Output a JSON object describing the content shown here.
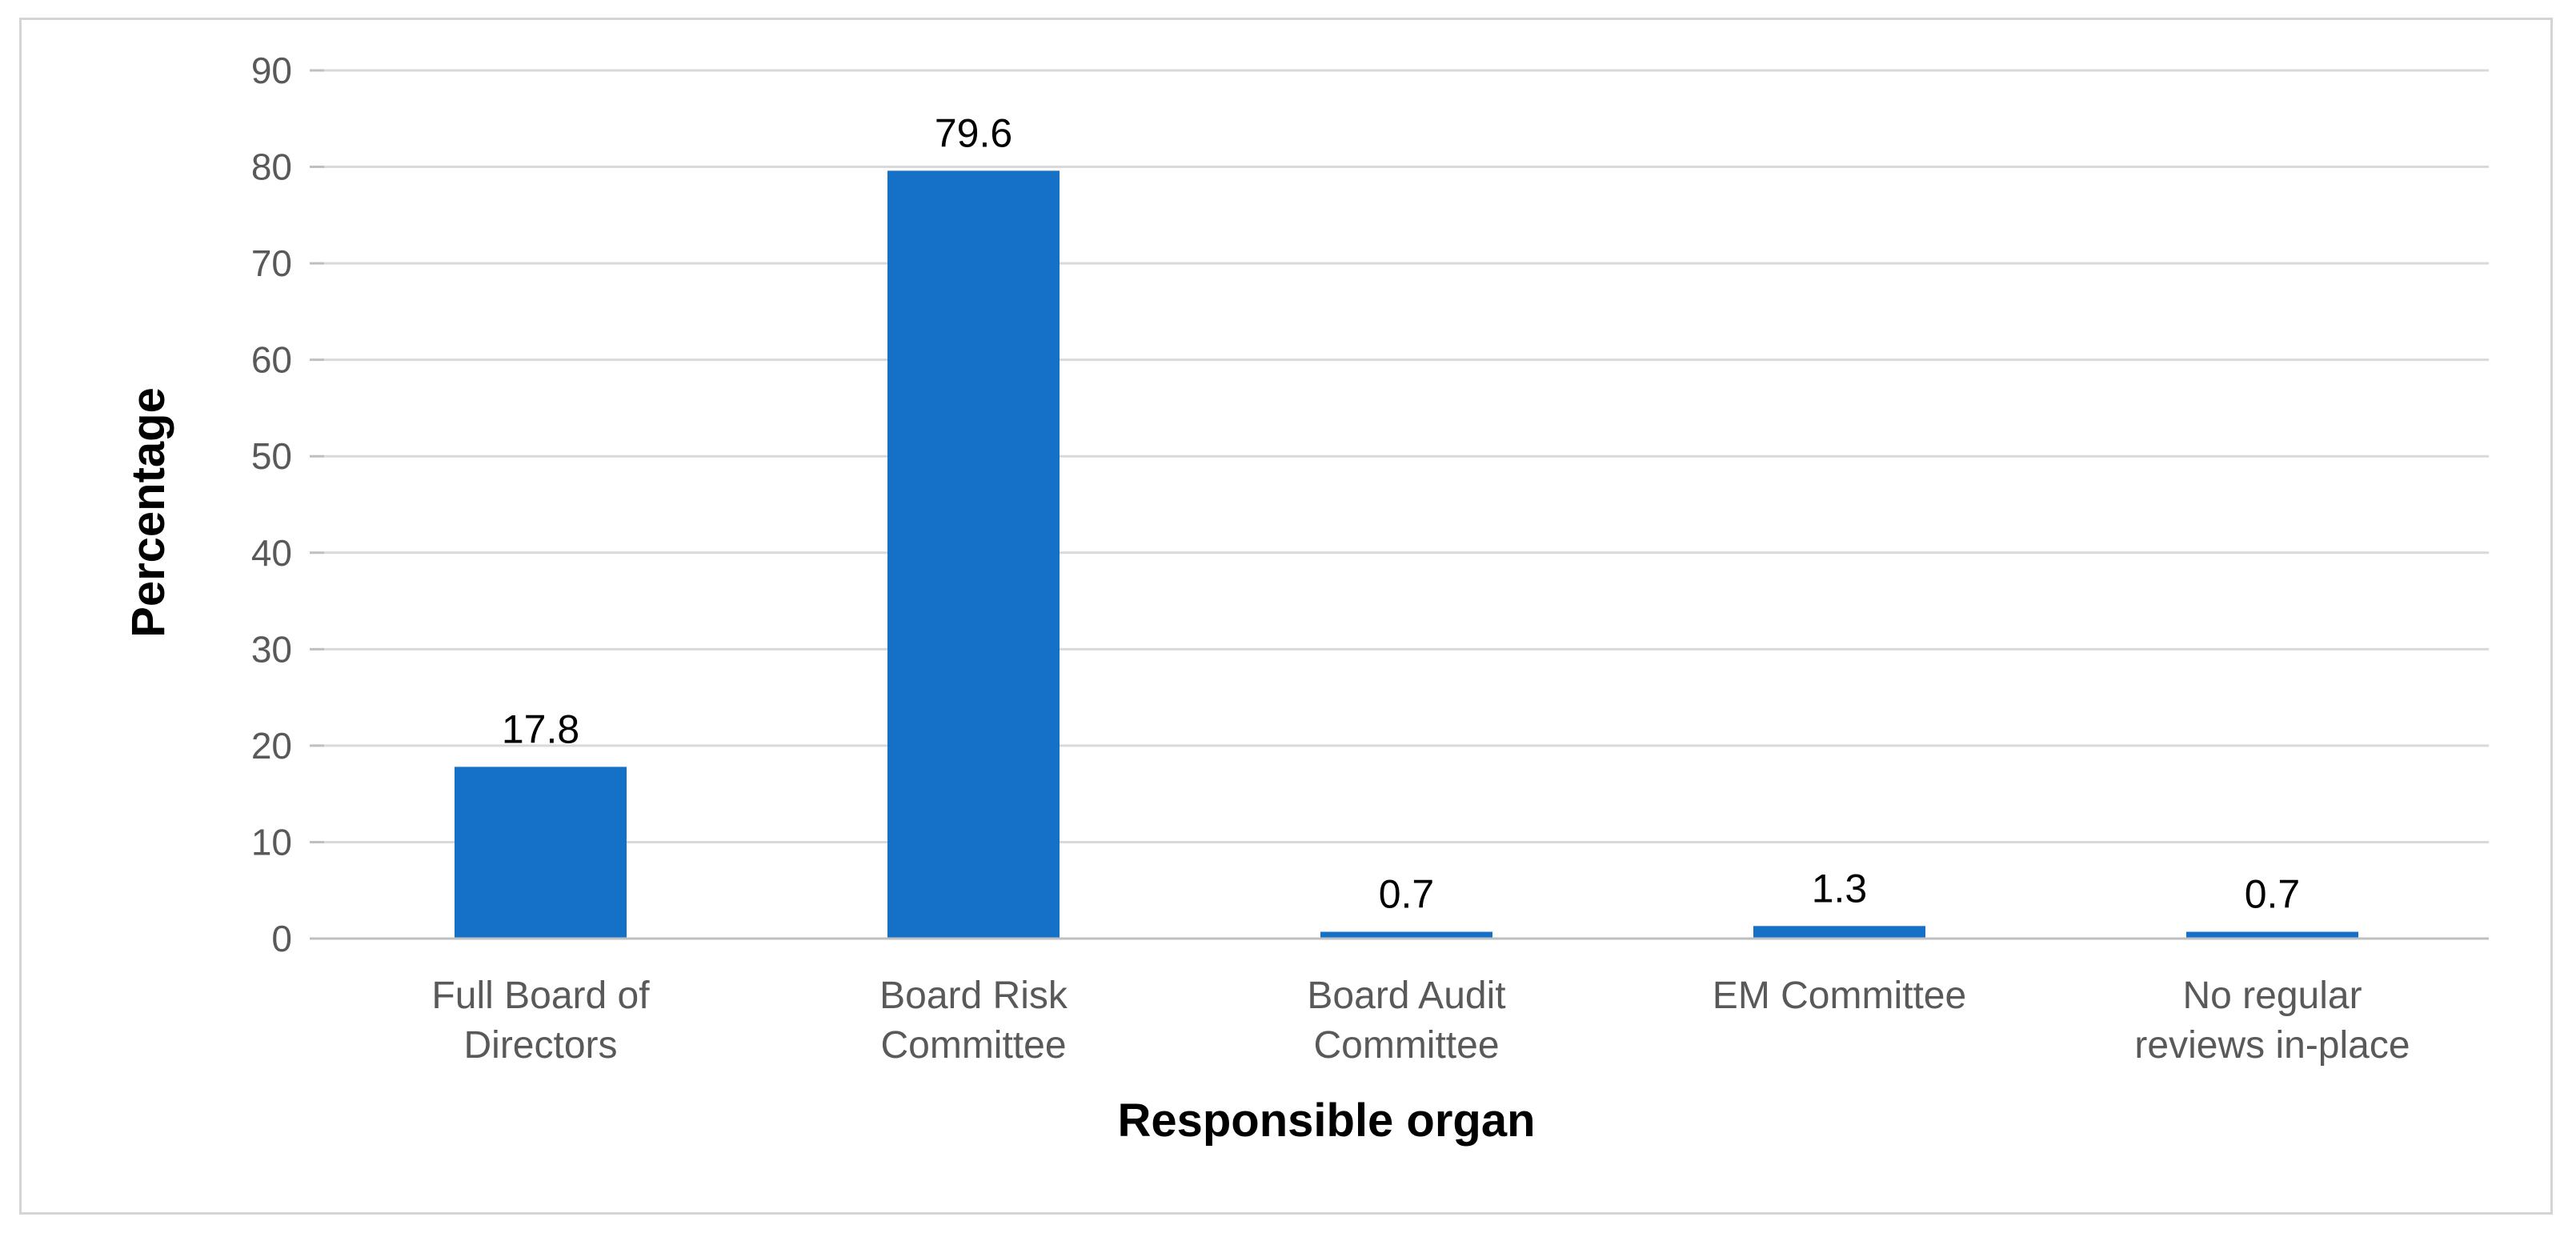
{
  "chart_data": {
    "type": "bar",
    "categories": [
      [
        "Full Board of",
        "Directors"
      ],
      [
        "Board Risk",
        "Committee"
      ],
      [
        "Board Audit",
        "Committee"
      ],
      [
        "EM Committee"
      ],
      [
        "No regular",
        "reviews in-place"
      ]
    ],
    "values": [
      17.8,
      79.6,
      0.7,
      1.3,
      0.7
    ],
    "data_labels": [
      "17.8",
      "79.6",
      "0.7",
      "1.3",
      "0.7"
    ],
    "xlabel": "Responsible organ",
    "ylabel": "Percentage",
    "ylim": [
      0,
      90
    ],
    "yticks": [
      0,
      10,
      20,
      30,
      40,
      50,
      60,
      70,
      80,
      90
    ],
    "grid": true,
    "legend": "none",
    "colors": {
      "bar": "#1570C8",
      "grid": "#d9d9d9",
      "axis": "#bfbfbf"
    }
  }
}
